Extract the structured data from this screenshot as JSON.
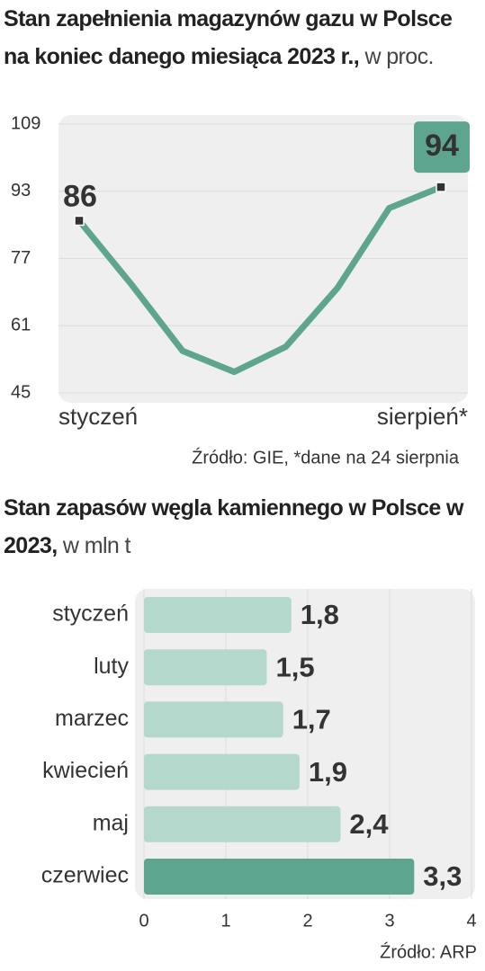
{
  "chart_data": [
    {
      "type": "line",
      "title": "Stan zapełnienia magazynów gazu w Polsce na koniec danego miesiąca 2023 r.,",
      "unit": "w proc.",
      "categories": [
        "styczeń",
        null,
        null,
        null,
        null,
        null,
        null,
        "sierpień*"
      ],
      "series": [
        {
          "color": "#5ea58f",
          "values": [
            86,
            71,
            55,
            50,
            56,
            70,
            89,
            94
          ],
          "value_labels": [
            "86",
            null,
            null,
            null,
            null,
            null,
            null,
            "94"
          ]
        }
      ],
      "ylim": [
        45,
        109
      ],
      "yticks": [
        45,
        61,
        77,
        93,
        109
      ],
      "grid": true,
      "source": "Źródło: GIE, *dane na 24 sierpnia"
    },
    {
      "type": "barh",
      "title": "Stan zapasów węgla kamiennego w Polsce w 2023,",
      "unit": "w mln t",
      "categories": [
        "styczeń",
        "luty",
        "marzec",
        "kwiecień",
        "maj",
        "czerwiec"
      ],
      "values": [
        1.8,
        1.5,
        1.7,
        1.9,
        2.4,
        3.3
      ],
      "value_labels": [
        "1,8",
        "1,5",
        "1,7",
        "1,9",
        "2,4",
        "3,3"
      ],
      "colors": [
        "#b5d8cc",
        "#b5d8cc",
        "#b5d8cc",
        "#b5d8cc",
        "#b5d8cc",
        "#5ea58f"
      ],
      "xlim": [
        0,
        4
      ],
      "xticks": [
        0,
        1,
        2,
        3,
        4
      ],
      "grid": true,
      "source": "Źródło: ARP"
    }
  ]
}
